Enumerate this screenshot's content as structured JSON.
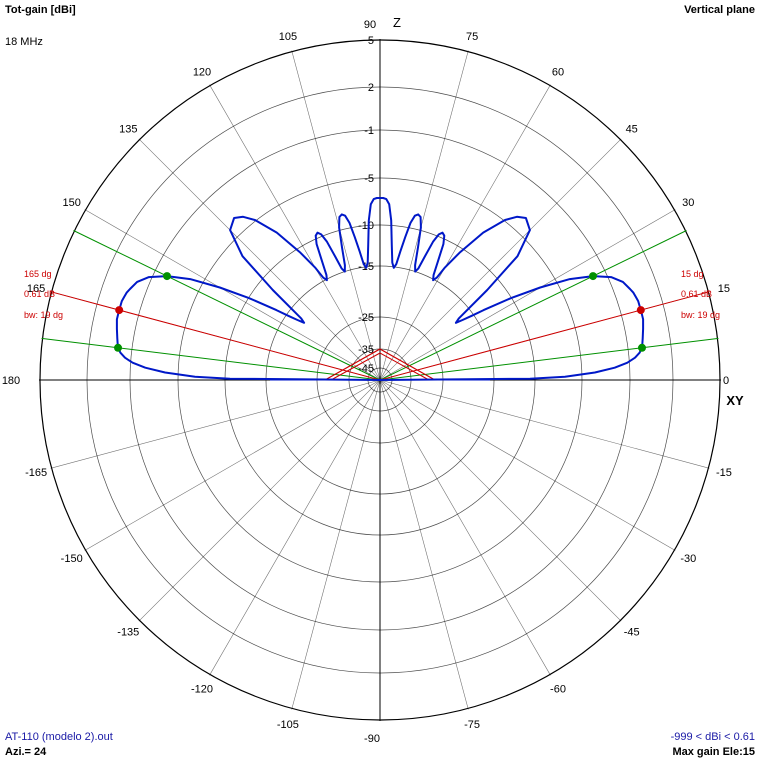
{
  "header": {
    "left_title": "Tot-gain [dBi]",
    "frequency": "18 MHz",
    "right_title": "Vertical plane"
  },
  "footer": {
    "file": "AT-110 (modelo 2).out",
    "azimuth": "Azi.= 24",
    "range": "-999 < dBi < 0.61",
    "max_gain": "Max gain Ele:15"
  },
  "colors": {
    "pattern": "#0018c8",
    "main_lobe": "#cc0000",
    "beamwidth": "#009000",
    "grid": "#000000"
  },
  "chart_data": {
    "type": "polar",
    "title": "Tot-gain [dBi]",
    "plane": "Vertical plane",
    "axis_labels": {
      "top": "Z",
      "right": "XY"
    },
    "angle_ticks": [
      90,
      75,
      60,
      45,
      30,
      15,
      0,
      -15,
      -30,
      -45,
      -60,
      -75,
      -90,
      -105,
      -120,
      -135,
      -150,
      -165,
      180,
      165,
      150,
      135,
      120,
      105
    ],
    "radial_ticks": [
      {
        "label": "5",
        "r": 340
      },
      {
        "label": "2",
        "r": 293
      },
      {
        "label": "-1",
        "r": 250
      },
      {
        "label": "-5",
        "r": 202
      },
      {
        "label": "-10",
        "r": 155
      },
      {
        "label": "-15",
        "r": 114
      },
      {
        "label": "-25",
        "r": 63
      },
      {
        "label": "-35",
        "r": 31
      },
      {
        "label": "-45",
        "r": 12
      }
    ],
    "max_gain_dbi": 0.61,
    "max_gain_elevation_deg": 15,
    "beamwidth_deg": 19,
    "beamwidth_limits_deg": [
      7,
      26
    ],
    "markers": [
      {
        "angle_label": "15 dg",
        "gain_label": "0.61 dB",
        "bw_label": "bw: 19 dg"
      },
      {
        "angle_label": "165 dg",
        "gain_label": "0.61 dB",
        "bw_label": "bw: 19 dg"
      }
    ],
    "pattern": {
      "angles_deg": [
        0,
        0.5,
        1,
        2,
        3,
        4,
        5,
        6,
        7,
        8,
        9,
        10,
        11,
        12,
        13,
        14,
        15,
        16,
        17,
        18,
        19,
        20,
        22,
        24,
        26,
        28,
        30,
        32,
        34,
        35,
        36,
        37,
        38,
        40,
        42,
        45,
        48,
        50,
        52,
        55,
        58,
        60,
        61,
        62,
        63,
        64,
        65,
        66,
        67,
        68,
        69,
        70,
        71,
        72,
        73,
        74,
        75,
        76,
        77,
        78,
        79,
        80,
        81,
        82,
        83,
        84,
        85,
        86,
        87,
        88,
        89,
        90
      ],
      "radius": [
        0,
        150,
        185,
        215,
        235,
        248,
        256,
        261,
        264,
        265,
        266,
        267,
        268,
        269,
        270,
        270,
        270,
        270,
        270,
        269,
        268,
        266,
        262,
        253,
        237,
        215,
        185,
        155,
        125,
        112,
        102,
        95,
        100,
        140,
        185,
        212,
        218,
        213,
        203,
        180,
        150,
        130,
        117,
        113,
        118,
        132,
        150,
        158,
        160,
        157,
        148,
        132,
        118,
        114,
        120,
        138,
        158,
        168,
        170,
        168,
        160,
        145,
        130,
        117,
        113,
        118,
        135,
        160,
        176,
        181,
        182,
        182
      ]
    },
    "main_lobe_triangle": [
      {
        "angle_deg": 0,
        "r": 55
      },
      {
        "angle_deg": 15,
        "r": 30
      },
      {
        "angle_deg": 90,
        "r": 31
      }
    ]
  }
}
